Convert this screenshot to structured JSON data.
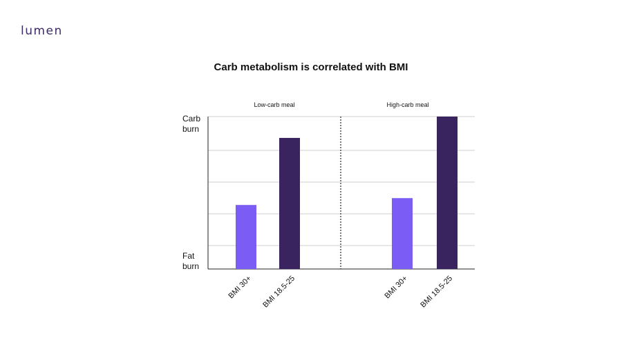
{
  "brand": {
    "logo_text": "lumen"
  },
  "chart_data": {
    "type": "bar",
    "title": "Carb metabolism is correlated with BMI",
    "y_axis": {
      "top_label": [
        "Carb",
        "burn"
      ],
      "bottom_label": [
        "Fat",
        "burn"
      ],
      "ylim": [
        0,
        1
      ],
      "grid": true
    },
    "panels": [
      {
        "label": "Low-carb meal",
        "bars": [
          {
            "category": "BMI 30+",
            "value": 0.42
          },
          {
            "category": "BMI 18.5-25",
            "value": 0.86
          }
        ]
      },
      {
        "label": "High-carb meal",
        "bars": [
          {
            "category": "BMI 30+",
            "value": 0.465
          },
          {
            "category": "BMI 18.5-25",
            "value": 1.0
          }
        ]
      }
    ],
    "colors": {
      "BMI 30+": "#7b5cf5",
      "BMI 18.5-25": "#3a2460"
    },
    "legend": "none"
  }
}
